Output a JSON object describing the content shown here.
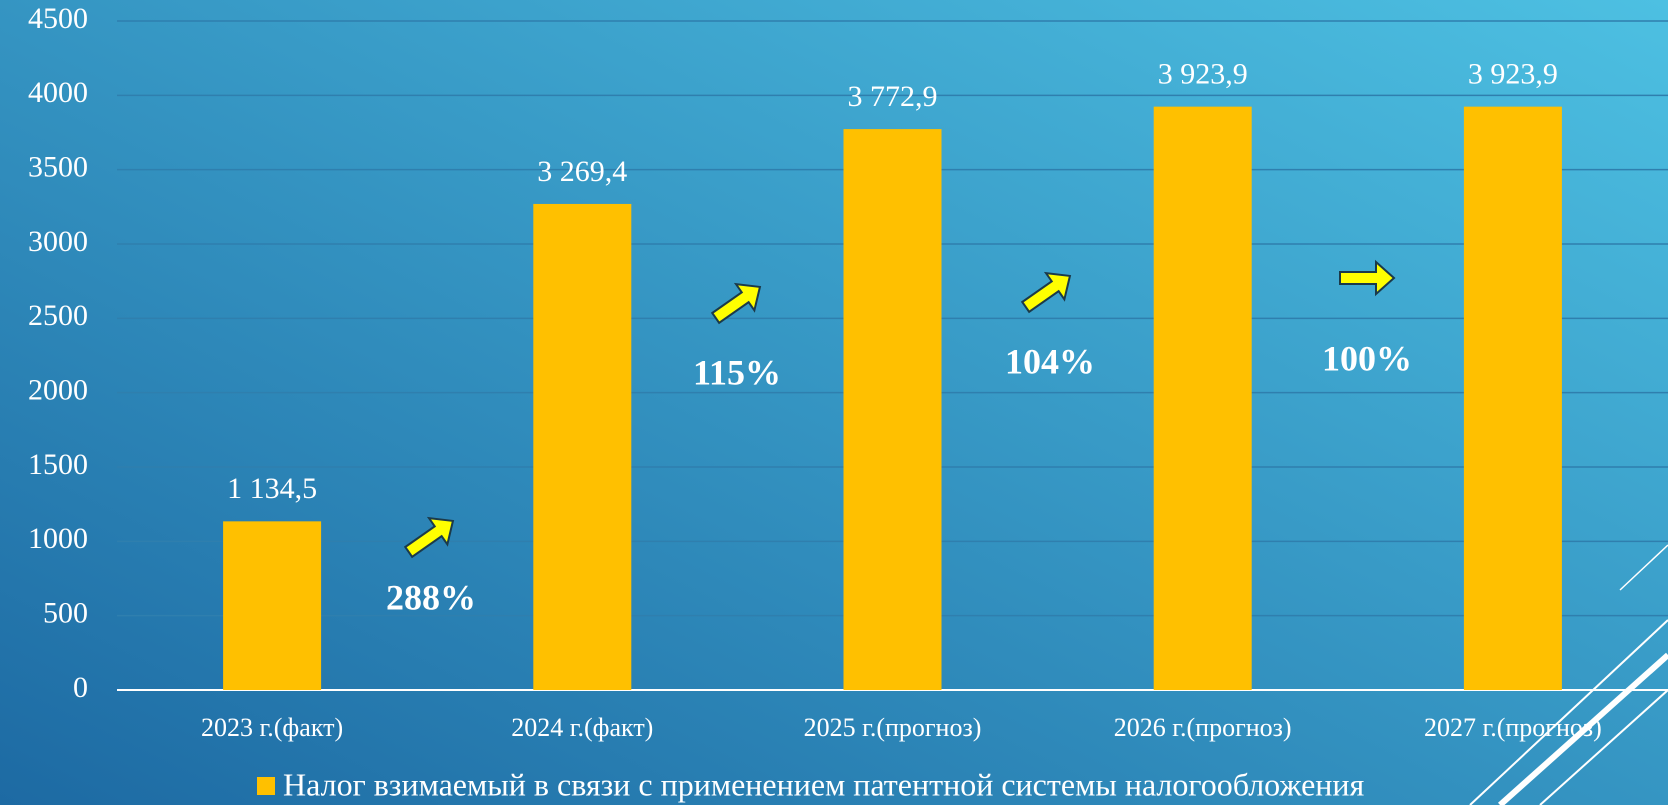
{
  "chart_data": {
    "type": "bar",
    "categories": [
      "2023 г.(факт)",
      "2024 г.(факт)",
      "2025 г.(прогноз)",
      "2026 г.(прогноз)",
      "2027 г.(прогноз)"
    ],
    "series": [
      {
        "name": "Налог взимаемый в связи с применением патентной системы налогообложения",
        "color": "#ffc000",
        "values": [
          1134.5,
          3269.4,
          3772.9,
          3923.9,
          3923.9
        ],
        "value_labels": [
          "1 134,5",
          "3 269,4",
          "3 772,9",
          "3 923,9",
          "3 923,9"
        ]
      }
    ],
    "annotations": [
      "288%",
      "115%",
      "104%",
      "100%"
    ],
    "ylim": [
      0,
      4500
    ],
    "yticks": [
      0,
      500,
      1000,
      1500,
      2000,
      2500,
      3000,
      3500,
      4000,
      4500
    ],
    "grid": true,
    "legend": "bottom"
  }
}
